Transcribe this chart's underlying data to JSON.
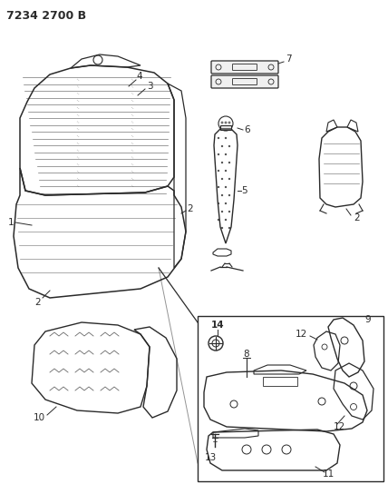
{
  "title": "7234 2700 B",
  "bg_color": "#ffffff",
  "line_color": "#2a2a2a",
  "fig_width": 4.28,
  "fig_height": 5.33,
  "dpi": 100
}
